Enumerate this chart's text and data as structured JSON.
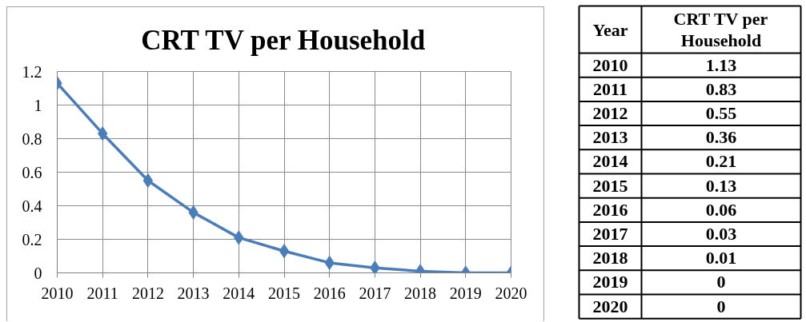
{
  "chart_data": [
    {
      "type": "line",
      "title": "CRT TV per Household",
      "categories": [
        "2010",
        "2011",
        "2012",
        "2013",
        "2014",
        "2015",
        "2016",
        "2017",
        "2018",
        "2019",
        "2020"
      ],
      "values": [
        1.13,
        0.83,
        0.55,
        0.36,
        0.21,
        0.13,
        0.06,
        0.03,
        0.01,
        0,
        0
      ],
      "color": "#4a7ebb",
      "ylim": [
        0,
        1.2
      ],
      "yticks": [
        0,
        0.2,
        0.4,
        0.6,
        0.8,
        1,
        1.2
      ],
      "grid": true,
      "marker": "diamond",
      "line_style": "solid"
    },
    {
      "type": "heatmap",
      "ylabel": "Year",
      "categories": [
        "CRT TV per Household"
      ],
      "y_categories": [
        "2010",
        "2011",
        "2012",
        "2013",
        "2014",
        "2015",
        "2016",
        "2017",
        "2018",
        "2019",
        "2020"
      ],
      "cells": [
        [
          1.13
        ],
        [
          0.83
        ],
        [
          0.55
        ],
        [
          0.36
        ],
        [
          0.21
        ],
        [
          0.13
        ],
        [
          0.06
        ],
        [
          0.03
        ],
        [
          0.01
        ],
        [
          0
        ],
        [
          0
        ]
      ],
      "color": "#ffffff",
      "data_labels": true
    }
  ]
}
